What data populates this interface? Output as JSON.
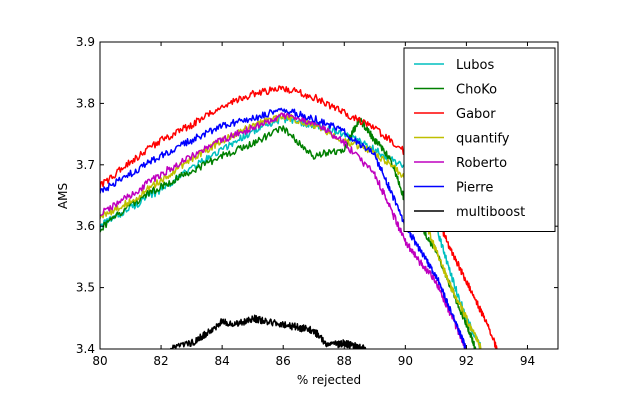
{
  "chart_data": {
    "type": "line",
    "title": "",
    "xlabel": "% rejected",
    "ylabel": "AMS",
    "xlim": [
      80,
      95
    ],
    "ylim": [
      3.4,
      3.9
    ],
    "xticks": [
      "80",
      "82",
      "84",
      "86",
      "88",
      "90",
      "92",
      "94"
    ],
    "yticks": [
      "3.4",
      "3.5",
      "3.6",
      "3.7",
      "3.8",
      "3.9"
    ],
    "grid": false,
    "legend_position": "top-right",
    "series": [
      {
        "name": "Lubos",
        "color": "#00bfbf",
        "x": [
          80,
          81,
          82,
          83,
          84,
          85,
          86,
          87,
          88,
          89,
          90,
          90.5,
          91,
          91.5,
          92,
          92.5
        ],
        "y": [
          3.6,
          3.63,
          3.66,
          3.695,
          3.725,
          3.755,
          3.775,
          3.765,
          3.75,
          3.725,
          3.695,
          3.66,
          3.6,
          3.52,
          3.45,
          3.4
        ]
      },
      {
        "name": "ChoKo",
        "color": "#008000",
        "x": [
          80,
          81,
          82,
          83,
          84,
          85,
          86,
          87,
          88,
          88.5,
          89,
          89.5,
          90,
          90.5,
          91,
          91.5,
          92,
          92.3
        ],
        "y": [
          3.595,
          3.635,
          3.665,
          3.69,
          3.715,
          3.735,
          3.76,
          3.715,
          3.725,
          3.775,
          3.74,
          3.71,
          3.64,
          3.6,
          3.56,
          3.5,
          3.44,
          3.4
        ]
      },
      {
        "name": "Gabor",
        "color": "#ff0000",
        "x": [
          80,
          81,
          82,
          83,
          84,
          85,
          86,
          87,
          88,
          89,
          90,
          90.5,
          91,
          91.5,
          92,
          92.5,
          93
        ],
        "y": [
          3.665,
          3.705,
          3.74,
          3.765,
          3.795,
          3.815,
          3.825,
          3.81,
          3.785,
          3.76,
          3.72,
          3.67,
          3.62,
          3.56,
          3.51,
          3.46,
          3.4
        ]
      },
      {
        "name": "quantify",
        "color": "#bfbf00",
        "x": [
          80,
          81,
          82,
          83,
          84,
          85,
          86,
          87,
          88,
          89,
          90,
          90.5,
          91,
          91.5,
          92,
          92.5
        ],
        "y": [
          3.615,
          3.64,
          3.675,
          3.71,
          3.74,
          3.765,
          3.78,
          3.765,
          3.74,
          3.72,
          3.68,
          3.63,
          3.56,
          3.5,
          3.45,
          3.4
        ]
      },
      {
        "name": "Roberto",
        "color": "#bf00bf",
        "x": [
          80,
          81,
          82,
          83,
          84,
          85,
          86,
          87,
          88,
          89,
          89.5,
          90,
          90.5,
          91,
          91.5,
          92
        ],
        "y": [
          3.62,
          3.65,
          3.685,
          3.715,
          3.74,
          3.76,
          3.78,
          3.77,
          3.735,
          3.685,
          3.63,
          3.575,
          3.54,
          3.51,
          3.455,
          3.4
        ]
      },
      {
        "name": "Pierre",
        "color": "#0000ff",
        "x": [
          80,
          81,
          82,
          83,
          84,
          85,
          86,
          87,
          88,
          89,
          89.5,
          90,
          90.5,
          91,
          91.5,
          92
        ],
        "y": [
          3.655,
          3.685,
          3.715,
          3.74,
          3.765,
          3.775,
          3.79,
          3.775,
          3.755,
          3.715,
          3.66,
          3.6,
          3.56,
          3.52,
          3.46,
          3.4
        ]
      },
      {
        "name": "multiboost",
        "color": "#000000",
        "x": [
          82.3,
          83,
          83.5,
          84,
          84.5,
          85,
          85.5,
          86,
          86.5,
          87,
          87.5,
          88,
          88.3,
          88.7
        ],
        "y": [
          3.4,
          3.41,
          3.425,
          3.445,
          3.44,
          3.45,
          3.445,
          3.44,
          3.435,
          3.43,
          3.405,
          3.41,
          3.405,
          3.4
        ]
      }
    ]
  }
}
